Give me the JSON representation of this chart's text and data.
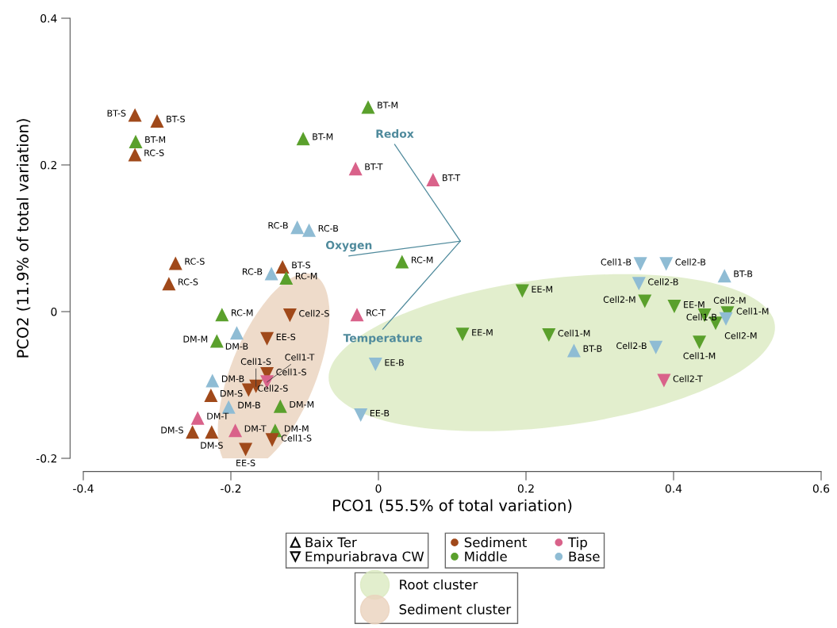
{
  "chart_data": {
    "type": "scatter",
    "xlabel": "PCO1 (55.5% of total variation)",
    "ylabel": "PCO2 (11.9% of total variation)",
    "xlim": [
      -0.4,
      0.6
    ],
    "xticks": [
      -0.4,
      -0.2,
      0,
      0.2,
      0.4,
      0.6
    ],
    "ylim": [
      -0.2,
      0.4
    ],
    "yticks": [
      -0.2,
      0,
      0.2,
      0.4
    ],
    "grid": false,
    "legend": "bottom",
    "series": [
      {
        "name": "Sediment",
        "color": "#a0491a",
        "marker": "triangle",
        "x": [
          -0.33,
          -0.3,
          -0.33,
          -0.275,
          -0.284,
          -0.13,
          -0.227,
          -0.252,
          -0.226
        ],
        "values": [
          0.268,
          0.26,
          0.214,
          0.066,
          0.038,
          0.061,
          -0.114,
          -0.164,
          -0.164
        ]
      },
      {
        "name": "Middle",
        "color": "#5aa02c",
        "marker": "triangle",
        "x": [
          -0.329,
          -0.102,
          -0.014,
          -0.125,
          0.032,
          -0.212,
          -0.219,
          -0.133,
          -0.14
        ],
        "values": [
          0.232,
          0.236,
          0.279,
          0.046,
          0.068,
          -0.004,
          -0.04,
          -0.129,
          -0.162
        ]
      },
      {
        "name": "Tip",
        "color": "#d9628a",
        "marker": "triangle",
        "x": [
          -0.031,
          0.074,
          -0.029,
          -0.245,
          -0.194
        ],
        "values": [
          0.195,
          0.18,
          -0.004,
          -0.145,
          -0.162
        ]
      },
      {
        "name": "Base",
        "color": "#8fbcd4",
        "marker": "triangle",
        "x": [
          -0.11,
          -0.094,
          -0.145,
          -0.192,
          -0.225,
          -0.203,
          0.265,
          0.469
        ],
        "values": [
          0.115,
          0.111,
          0.052,
          -0.029,
          -0.094,
          -0.13,
          -0.053,
          0.049
        ]
      },
      {
        "color": "#a0491a",
        "marker": "triangle-down",
        "x": [
          -0.12,
          -0.151,
          -0.151,
          -0.176,
          -0.166,
          -0.144,
          -0.18
        ],
        "values": [
          -0.005,
          -0.037,
          -0.085,
          -0.107,
          -0.102,
          -0.175,
          -0.188
        ]
      },
      {
        "color": "#5aa02c",
        "marker": "triangle-down",
        "x": [
          0.114,
          0.195,
          0.231,
          0.361,
          0.401,
          0.442,
          0.473,
          0.457,
          0.435
        ],
        "values": [
          -0.031,
          0.028,
          -0.032,
          0.014,
          0.007,
          -0.005,
          -0.002,
          -0.016,
          -0.042
        ]
      },
      {
        "color": "#d9628a",
        "marker": "triangle-down",
        "x": [
          -0.151,
          0.387
        ],
        "values": [
          -0.096,
          -0.094
        ]
      },
      {
        "color": "#8fbcd4",
        "marker": "triangle-down",
        "x": [
          0.355,
          0.39,
          0.353,
          0.471,
          0.376,
          -0.004,
          -0.024
        ],
        "values": [
          0.065,
          0.065,
          0.038,
          -0.01,
          -0.049,
          -0.072,
          -0.141
        ]
      },
      {
        "type": "line",
        "color": "#4f8a9c",
        "x": [
          0.111,
          0.022
        ],
        "values": [
          0.096,
          0.228
        ]
      },
      {
        "type": "line",
        "color": "#4f8a9c",
        "x": [
          0.111,
          -0.04
        ],
        "values": [
          0.096,
          0.076
        ]
      },
      {
        "type": "line",
        "color": "#4f8a9c",
        "x": [
          0.111,
          0.006
        ],
        "values": [
          0.096,
          -0.024
        ]
      }
    ],
    "annotations": [
      "Baix Ter",
      "Empuriabrava CW",
      "Root cluster",
      "Sediment cluster",
      {
        "text": "Redox",
        "x": 0.022,
        "y": 0.228
      },
      {
        "text": "Oxygen",
        "x": -0.04,
        "y": 0.076
      },
      {
        "text": "Temperature",
        "x": 0.006,
        "y": -0.024
      },
      {
        "text": "BT-S",
        "x": -0.33,
        "y": 0.268
      },
      {
        "text": "BT-S",
        "x": -0.3,
        "y": 0.26
      },
      {
        "text": "RC-S",
        "x": -0.33,
        "y": 0.214
      },
      {
        "text": "RC-S",
        "x": -0.275,
        "y": 0.066
      },
      {
        "text": "RC-S",
        "x": -0.284,
        "y": 0.038
      },
      {
        "text": "BT-S",
        "x": -0.13,
        "y": 0.061
      },
      {
        "text": "DM-S",
        "x": -0.227,
        "y": -0.114
      },
      {
        "text": "DM-S",
        "x": -0.252,
        "y": -0.164
      },
      {
        "text": "DM-S",
        "x": -0.226,
        "y": -0.164
      },
      {
        "text": "BT-M",
        "x": -0.329,
        "y": 0.232
      },
      {
        "text": "BT-M",
        "x": -0.102,
        "y": 0.236
      },
      {
        "text": "BT-M",
        "x": -0.014,
        "y": 0.279
      },
      {
        "text": "RC-M",
        "x": -0.125,
        "y": 0.046
      },
      {
        "text": "RC-M",
        "x": 0.032,
        "y": 0.068
      },
      {
        "text": "RC-M",
        "x": -0.212,
        "y": -0.004
      },
      {
        "text": "DM-M",
        "x": -0.219,
        "y": -0.04
      },
      {
        "text": "DM-M",
        "x": -0.133,
        "y": -0.129
      },
      {
        "text": "DM-M",
        "x": -0.14,
        "y": -0.162
      },
      {
        "text": "BT-T",
        "x": -0.031,
        "y": 0.195
      },
      {
        "text": "BT-T",
        "x": 0.074,
        "y": 0.18
      },
      {
        "text": "RC-T",
        "x": -0.029,
        "y": -0.004
      },
      {
        "text": "DM-T",
        "x": -0.245,
        "y": -0.145
      },
      {
        "text": "DM-T",
        "x": -0.194,
        "y": -0.162
      },
      {
        "text": "RC-B",
        "x": -0.11,
        "y": 0.115
      },
      {
        "text": "RC-B",
        "x": -0.094,
        "y": 0.111
      },
      {
        "text": "RC-B",
        "x": -0.145,
        "y": 0.052
      },
      {
        "text": "DM-B",
        "x": -0.192,
        "y": -0.029
      },
      {
        "text": "DM-B",
        "x": -0.225,
        "y": -0.094
      },
      {
        "text": "DM-B",
        "x": -0.203,
        "y": -0.13
      },
      {
        "text": "BT-B",
        "x": 0.265,
        "y": -0.053
      },
      {
        "text": "BT-B",
        "x": 0.469,
        "y": 0.049
      },
      {
        "text": "Cell2-S",
        "x": -0.12,
        "y": -0.005
      },
      {
        "text": "EE-S",
        "x": -0.151,
        "y": -0.037
      },
      {
        "text": "Cell1-S",
        "x": -0.151,
        "y": -0.085
      },
      {
        "text": "Cell2-S",
        "x": -0.176,
        "y": -0.107
      },
      {
        "text": "Cell1-S",
        "x": -0.166,
        "y": -0.102
      },
      {
        "text": "Cell1-S",
        "x": -0.144,
        "y": -0.175
      },
      {
        "text": "EE-S",
        "x": -0.18,
        "y": -0.188
      },
      {
        "text": "EE-M",
        "x": 0.114,
        "y": -0.031
      },
      {
        "text": "EE-M",
        "x": 0.195,
        "y": 0.028
      },
      {
        "text": "Cell1-M",
        "x": 0.231,
        "y": -0.032
      },
      {
        "text": "Cell2-M",
        "x": 0.361,
        "y": 0.014
      },
      {
        "text": "EE-M",
        "x": 0.401,
        "y": 0.007
      },
      {
        "text": "Cell2-M",
        "x": 0.442,
        "y": -0.005
      },
      {
        "text": "Cell1-M",
        "x": 0.473,
        "y": -0.002
      },
      {
        "text": "Cell2-M",
        "x": 0.457,
        "y": -0.016
      },
      {
        "text": "Cell1-M",
        "x": 0.435,
        "y": -0.042
      },
      {
        "text": "Cell1-T",
        "x": -0.151,
        "y": -0.096
      },
      {
        "text": "Cell2-T",
        "x": 0.387,
        "y": -0.094
      },
      {
        "text": "Cell1-B",
        "x": 0.355,
        "y": 0.065
      },
      {
        "text": "Cell2-B",
        "x": 0.39,
        "y": 0.065
      },
      {
        "text": "Cell2-B",
        "x": 0.353,
        "y": 0.038
      },
      {
        "text": "Cell1-B",
        "x": 0.471,
        "y": -0.01
      },
      {
        "text": "Cell2-B",
        "x": 0.376,
        "y": -0.049
      },
      {
        "text": "EE-B",
        "x": -0.004,
        "y": -0.072
      },
      {
        "text": "EE-B",
        "x": -0.024,
        "y": -0.141
      }
    ]
  }
}
